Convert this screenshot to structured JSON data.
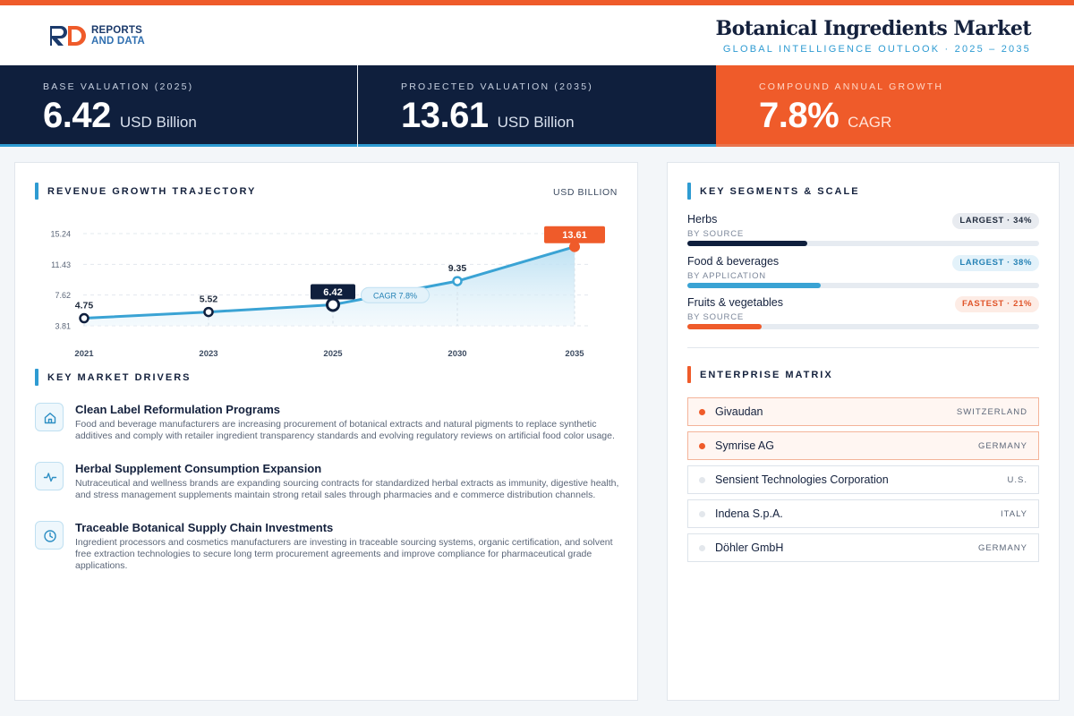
{
  "header": {
    "brand_line1": "REPORTS",
    "brand_line2": "AND DATA",
    "title": "Botanical Ingredients Market",
    "subtitle": "GLOBAL INTELLIGENCE OUTLOOK  ·  2025 – 2035"
  },
  "kpis": [
    {
      "label": "BASE VALUATION (2025)",
      "value": "6.42",
      "unit": "USD Billion"
    },
    {
      "label": "PROJECTED VALUATION (2035)",
      "value": "13.61",
      "unit": "USD Billion"
    },
    {
      "label": "COMPOUND ANNUAL GROWTH",
      "value": "7.8%",
      "unit": "CAGR"
    }
  ],
  "chart_section": {
    "title": "REVENUE GROWTH TRAJECTORY",
    "unit_label": "USD BILLION"
  },
  "chart_data": {
    "type": "area",
    "title": "REVENUE GROWTH TRAJECTORY",
    "ylabel": "USD BILLION",
    "x": [
      "2021",
      "2023",
      "2025",
      "2030",
      "2035"
    ],
    "values": [
      4.75,
      5.52,
      6.42,
      9.35,
      13.61
    ],
    "value_labels": [
      "4.75",
      "5.52",
      "6.42",
      "9.35",
      "13.61"
    ],
    "ylim": [
      3.81,
      15.24
    ],
    "yticks": [
      "15.24",
      "11.43",
      "7.62",
      "3.81"
    ],
    "highlight": {
      "base_year": "2025",
      "end_year": "2035"
    },
    "annotation": "CAGR 7.8%",
    "grid": true,
    "line_color": "#3aa3d4",
    "highlight_color": "#ef5b2a"
  },
  "drivers_section": {
    "title": "KEY MARKET DRIVERS"
  },
  "drivers": [
    {
      "icon": "home-icon",
      "title": "Clean Label Reformulation Programs",
      "desc": "Food and beverage manufacturers are increasing procurement of botanical extracts and natural pigments to replace synthetic additives and comply with retailer ingredient transparency standards and evolving regulatory reviews on artificial food color usage."
    },
    {
      "icon": "pulse-icon",
      "title": "Herbal Supplement Consumption Expansion",
      "desc": "Nutraceutical and wellness brands are expanding sourcing contracts for standardized herbal extracts as immunity, digestive health, and stress management supplements maintain strong retail sales through pharmacies and e commerce distribution channels."
    },
    {
      "icon": "clock-icon",
      "title": "Traceable Botanical Supply Chain Investments",
      "desc": "Ingredient processors and cosmetics manufacturers are investing in traceable sourcing systems, organic certification, and solvent free extraction technologies to secure long term procurement agreements and improve compliance for pharmaceutical grade applications."
    }
  ],
  "segments_section": {
    "title": "KEY SEGMENTS & SCALE"
  },
  "segments": [
    {
      "name": "Herbs",
      "sub": "BY SOURCE",
      "badge": "LARGEST · 34%",
      "share": 0.34,
      "style": "navy"
    },
    {
      "name": "Food & beverages",
      "sub": "BY APPLICATION",
      "badge": "LARGEST · 38%",
      "share": 0.38,
      "style": "blue"
    },
    {
      "name": "Fruits & vegetables",
      "sub": "BY SOURCE",
      "badge": "FASTEST · 21%",
      "share": 0.21,
      "style": "orange"
    }
  ],
  "enterprise_section": {
    "title": "ENTERPRISE MATRIX"
  },
  "enterprises": [
    {
      "name": "Givaudan",
      "country": "SWITZERLAND",
      "highlight": true
    },
    {
      "name": "Symrise AG",
      "country": "GERMANY",
      "highlight": true
    },
    {
      "name": "Sensient Technologies Corporation",
      "country": "U.S.",
      "highlight": false
    },
    {
      "name": "Indena S.p.A.",
      "country": "ITALY",
      "highlight": false
    },
    {
      "name": "Döhler GmbH",
      "country": "GERMANY",
      "highlight": false
    }
  ],
  "colors": {
    "accent_orange": "#ef5b2a",
    "accent_blue": "#2e9bd2",
    "navy": "#0f1f3d"
  }
}
